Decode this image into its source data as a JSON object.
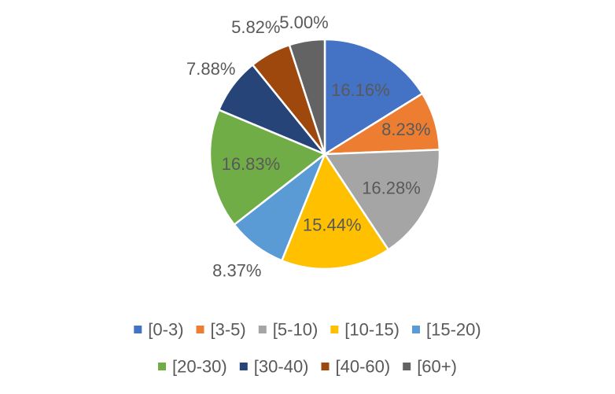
{
  "chart_data": {
    "type": "pie",
    "title": "",
    "categories": [
      "[0-3)",
      "[3-5)",
      "[5-10)",
      "[10-15)",
      "[15-20)",
      "[20-30)",
      "[30-40)",
      "[40-60)",
      "[60+)"
    ],
    "values": [
      16.16,
      8.23,
      16.28,
      15.44,
      8.37,
      16.83,
      7.88,
      5.82,
      5.0
    ],
    "data_labels": [
      "16.16%",
      "8.23%",
      "16.28%",
      "15.44%",
      "8.37%",
      "16.83%",
      "7.88%",
      "5.82%",
      "5.00%"
    ],
    "colors": [
      "#4472C4",
      "#ED7D31",
      "#A5A5A5",
      "#FFC000",
      "#5B9BD5",
      "#70AD47",
      "#264478",
      "#9E480E",
      "#636363"
    ],
    "start_angle": "12 o'clock",
    "direction": "clockwise",
    "legend_position": "bottom"
  }
}
